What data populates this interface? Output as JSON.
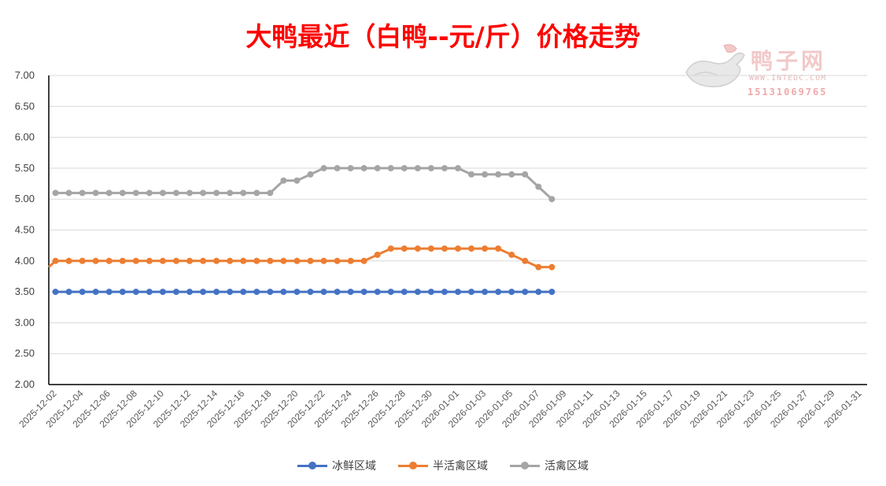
{
  "chart_data": {
    "type": "line",
    "title": "大鸭最近（白鸭--元/斤）价格走势",
    "ylim": [
      2.0,
      7.0
    ],
    "y_ticks": [
      "7.00",
      "6.50",
      "6.00",
      "5.50",
      "5.00",
      "4.50",
      "4.00",
      "3.50",
      "3.00",
      "2.50",
      "2.00"
    ],
    "x_tick_labels": [
      "2025-12-02",
      "2025-12-04",
      "2025-12-06",
      "2025-12-08",
      "2025-12-10",
      "2025-12-12",
      "2025-12-14",
      "2025-12-16",
      "2025-12-18",
      "2025-12-20",
      "2025-12-22",
      "2025-12-24",
      "2025-12-26",
      "2025-12-28",
      "2025-12-30",
      "2026-01-01",
      "2026-01-03",
      "2026-01-05",
      "2026-01-07",
      "2026-01-09",
      "2026-01-11",
      "2026-01-13",
      "2026-01-15",
      "2026-01-17",
      "2026-01-19",
      "2026-01-21",
      "2026-01-23",
      "2026-01-25",
      "2026-01-27",
      "2026-01-29",
      "2026-01-31"
    ],
    "grid": "horizontal",
    "legend_position": "bottom",
    "series": [
      {
        "name": "冰鲜区域",
        "color": "#4472c4",
        "values": [
          3.5,
          3.5,
          3.5,
          3.5,
          3.5,
          3.5,
          3.5,
          3.5,
          3.5,
          3.5,
          3.5,
          3.5,
          3.5,
          3.5,
          3.5,
          3.5,
          3.5,
          3.5,
          3.5,
          3.5,
          3.5,
          3.5,
          3.5,
          3.5,
          3.5,
          3.5,
          3.5,
          3.5,
          3.5,
          3.5,
          3.5,
          3.5,
          3.5,
          3.5,
          3.5,
          3.5,
          3.5,
          3.5
        ]
      },
      {
        "name": "半活禽区域",
        "color": "#ed7d31",
        "values": [
          4.0,
          4.0,
          4.0,
          4.0,
          4.0,
          4.0,
          4.0,
          4.0,
          4.0,
          4.0,
          4.0,
          4.0,
          4.0,
          4.0,
          4.0,
          4.0,
          4.0,
          4.0,
          4.0,
          4.0,
          4.0,
          4.0,
          4.0,
          4.0,
          4.1,
          4.2,
          4.2,
          4.2,
          4.2,
          4.2,
          4.2,
          4.2,
          4.2,
          4.2,
          4.1,
          4.0,
          3.9,
          3.9
        ]
      },
      {
        "name": "活禽区域",
        "color": "#a5a5a5",
        "values": [
          5.1,
          5.1,
          5.1,
          5.1,
          5.1,
          5.1,
          5.1,
          5.1,
          5.1,
          5.1,
          5.1,
          5.1,
          5.1,
          5.1,
          5.1,
          5.1,
          5.1,
          5.3,
          5.3,
          5.4,
          5.5,
          5.5,
          5.5,
          5.5,
          5.5,
          5.5,
          5.5,
          5.5,
          5.5,
          5.5,
          5.5,
          5.4,
          5.4,
          5.4,
          5.4,
          5.4,
          5.2,
          5.0
        ]
      }
    ]
  },
  "watermark": {
    "brand": "鸭子网",
    "url": "WWW.INTEDC.COM",
    "phone": "15131069765"
  }
}
